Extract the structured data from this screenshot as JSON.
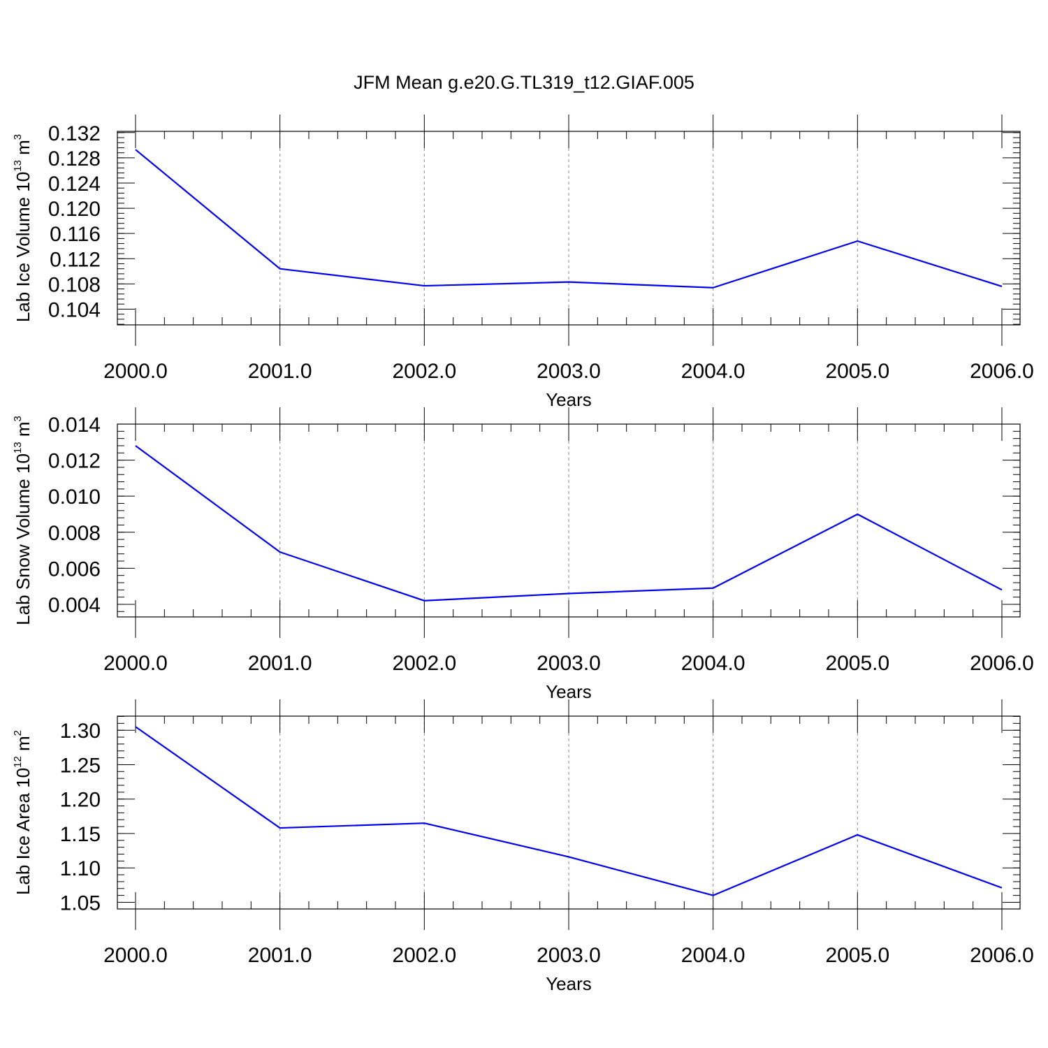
{
  "title": "JFM Mean g.e20.G.TL319_t12.GIAF.005",
  "colors": {
    "line": "#0000ee",
    "frame": "#000000",
    "grid": "#8a8a8a"
  },
  "chart_data": [
    {
      "type": "line",
      "x": [
        2000,
        2001,
        2002,
        2003,
        2004,
        2005,
        2006
      ],
      "series": [
        {
          "values": [
            0.1293,
            0.1104,
            0.1077,
            0.1083,
            0.1074,
            0.1148,
            0.1076
          ]
        }
      ],
      "xlabel": "Years",
      "ylabel": {
        "text": "Lab Ice Volume 10",
        "sup1": "13",
        "unit": " m",
        "sup2": "3"
      },
      "xlim": [
        2000,
        2006
      ],
      "ylim": [
        0.1015,
        0.1322
      ],
      "xticks": [
        "2000.0",
        "2001.0",
        "2002.0",
        "2003.0",
        "2004.0",
        "2005.0",
        "2006.0"
      ],
      "yticks": [
        0.104,
        0.108,
        0.112,
        0.116,
        0.12,
        0.124,
        0.128,
        0.132
      ],
      "ytick_labels": [
        "0.104",
        "0.108",
        "0.112",
        "0.116",
        "0.120",
        "0.124",
        "0.128",
        "0.132"
      ],
      "grid": "vertical dashed at major x ticks"
    },
    {
      "type": "line",
      "x": [
        2000,
        2001,
        2002,
        2003,
        2004,
        2005,
        2006
      ],
      "series": [
        {
          "values": [
            0.0128,
            0.0069,
            0.0042,
            0.0046,
            0.0049,
            0.009,
            0.0048
          ]
        }
      ],
      "xlabel": "Years",
      "ylabel": {
        "text": "Lab Snow Volume 10",
        "sup1": "13",
        "unit": " m",
        "sup2": "3"
      },
      "xlim": [
        2000,
        2006
      ],
      "ylim": [
        0.0033,
        0.014
      ],
      "xticks": [
        "2000.0",
        "2001.0",
        "2002.0",
        "2003.0",
        "2004.0",
        "2005.0",
        "2006.0"
      ],
      "yticks": [
        0.004,
        0.006,
        0.008,
        0.01,
        0.012,
        0.014
      ],
      "ytick_labels": [
        "0.004",
        "0.006",
        "0.008",
        "0.010",
        "0.012",
        "0.014"
      ],
      "grid": "vertical dashed at major x ticks"
    },
    {
      "type": "line",
      "x": [
        2000,
        2001,
        2002,
        2003,
        2004,
        2005,
        2006
      ],
      "series": [
        {
          "values": [
            1.305,
            1.158,
            1.165,
            1.116,
            1.06,
            1.148,
            1.071
          ]
        }
      ],
      "xlabel": "Years",
      "ylabel": {
        "text": "Lab Ice Area 10",
        "sup1": "12",
        "unit": " m",
        "sup2": "2"
      },
      "xlim": [
        2000,
        2006
      ],
      "ylim": [
        1.0403,
        1.3205
      ],
      "xticks": [
        "2000.0",
        "2001.0",
        "2002.0",
        "2003.0",
        "2004.0",
        "2005.0",
        "2006.0"
      ],
      "yticks": [
        1.05,
        1.1,
        1.15,
        1.2,
        1.25,
        1.3
      ],
      "ytick_labels": [
        "1.05",
        "1.10",
        "1.15",
        "1.20",
        "1.25",
        "1.30"
      ],
      "grid": "vertical dashed at major x ticks"
    }
  ]
}
